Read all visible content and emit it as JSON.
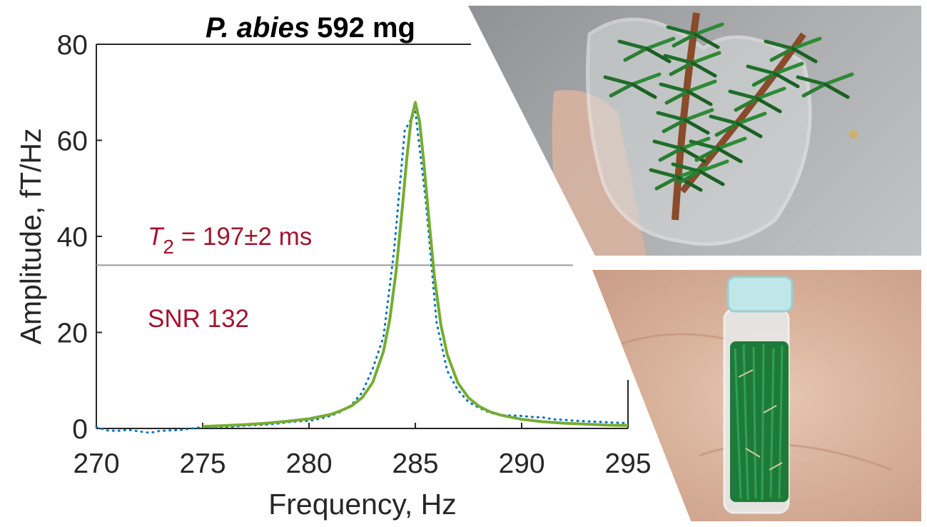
{
  "chart_data": {
    "type": "line",
    "title_italic": "P. abies",
    "title_rest": "592 mg",
    "xlabel": "Frequency, Hz",
    "ylabel": "Amplitude, fT/Hz",
    "xlim": [
      270,
      295
    ],
    "ylim": [
      0,
      80
    ],
    "xticks": [
      "270",
      "275",
      "280",
      "285",
      "290",
      "295"
    ],
    "yticks": [
      "0",
      "20",
      "40",
      "60",
      "80"
    ],
    "threshold_line_y": 34,
    "annotation_t2_symbol": "T",
    "annotation_t2_subscript": "2",
    "annotation_t2_value": " = 197±2 ms",
    "annotation_snr": "SNR 132",
    "colors": {
      "fit": "#77ac30",
      "data": "#0072bd",
      "annotation": "#a2142f",
      "threshold": "#9a9a9a"
    },
    "series": [
      {
        "style": "dotted",
        "x": [
          270.0,
          270.5,
          271.0,
          271.5,
          272.0,
          272.5,
          273.0,
          273.5,
          274.0,
          274.5,
          275.0,
          275.5,
          276.0,
          276.5,
          277.0,
          277.5,
          278.0,
          278.5,
          279.0,
          279.5,
          280.0,
          280.5,
          281.0,
          281.5,
          282.0,
          282.5,
          283.0,
          283.5,
          284.0,
          284.5,
          285.0,
          285.5,
          286.0,
          286.5,
          287.0,
          287.5,
          288.0,
          288.5,
          289.0,
          289.5,
          290.0,
          290.5,
          291.0,
          291.5,
          292.0,
          292.5,
          293.0,
          293.5,
          294.0,
          294.5,
          295.0
        ],
        "values": [
          0.3,
          -0.4,
          -0.5,
          -0.3,
          -0.6,
          -0.9,
          -0.5,
          -0.4,
          -0.3,
          0.0,
          0.3,
          0.2,
          0.3,
          0.4,
          0.6,
          0.7,
          0.8,
          1.0,
          1.3,
          1.5,
          1.6,
          2.0,
          2.6,
          3.5,
          4.9,
          7.5,
          12.5,
          19.0,
          37.0,
          62.0,
          66.0,
          47.0,
          22.0,
          12.0,
          8.0,
          5.5,
          4.3,
          3.3,
          2.8,
          2.7,
          2.6,
          2.4,
          2.3,
          1.9,
          1.8,
          1.6,
          1.5,
          1.4,
          1.3,
          1.2,
          1.1
        ]
      },
      {
        "style": "solid",
        "x": [
          275.0,
          276.0,
          277.0,
          278.0,
          279.0,
          280.0,
          281.0,
          281.5,
          282.0,
          282.5,
          283.0,
          283.5,
          283.8,
          284.1,
          284.4,
          284.6,
          284.8,
          285.0,
          285.2,
          285.4,
          285.6,
          285.9,
          286.2,
          286.5,
          287.0,
          287.5,
          288.0,
          288.5,
          289.0,
          290.0,
          291.0,
          292.0,
          293.0,
          294.0,
          295.0
        ],
        "values": [
          0.4,
          0.6,
          0.8,
          1.1,
          1.5,
          2.0,
          2.9,
          3.7,
          4.7,
          6.4,
          9.6,
          16.0,
          22.7,
          32.9,
          46.5,
          56.3,
          64.2,
          67.9,
          63.8,
          55.4,
          45.4,
          31.5,
          21.6,
          15.4,
          9.5,
          6.4,
          4.6,
          3.5,
          2.8,
          1.9,
          1.4,
          1.1,
          0.9,
          0.7,
          0.6
        ]
      }
    ]
  },
  "photos": {
    "top_description_icon": "pine-branch-in-glass-icon",
    "bottom_description_icon": "needles-in-vial-icon"
  }
}
